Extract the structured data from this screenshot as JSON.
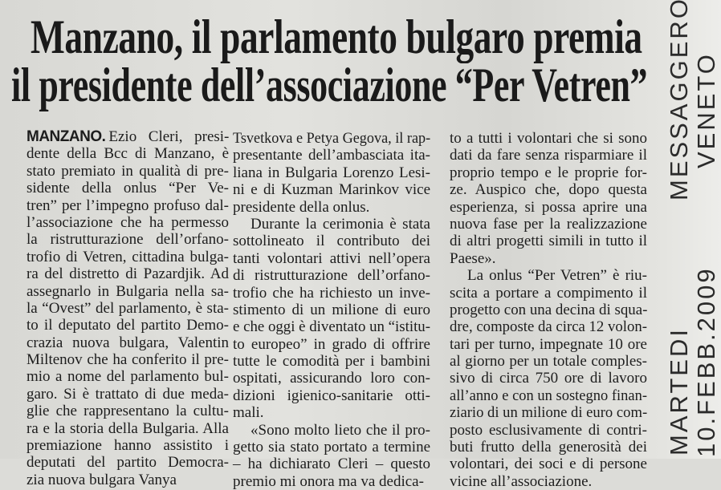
{
  "headline": {
    "line1": "Manzano, il parlamento bulgaro premia",
    "line2": "il presidente dell’associazione “Per Vetren”"
  },
  "article": {
    "lead": "MANZANO.",
    "columns": [
      {
        "paragraphs": [
          [
            "Ezio Cleri, presi-",
            "dente della Bcc di Manzano, è",
            "stato premiato in qualità di pre-",
            "sidente della onlus “Per Ve-",
            "tren” per l’impegno profuso dal-",
            "l’associazione che ha permesso",
            "la ristrutturazione dell’orfano-",
            "trofio di Vetren, cittadina bulga-",
            "ra del distretto di Pazardjik. Ad",
            "assegnarlo in Bulgaria nella sa-",
            "la “Ovest” del parlamento, è sta-",
            "to il deputato del partito Demo-",
            "crazia nuova bulgara, Valentin",
            "Miltenov che ha conferito il pre-",
            "mio a nome del parlamento bul-",
            "garo. Si è trattato di due meda-",
            "glie che rappresentano la cultu-",
            "ra e la storia della Bulgaria. Alla",
            "premiazione hanno assistito i",
            "deputati del partito Democra-",
            "zia nuova bulgara Vanya"
          ]
        ]
      },
      {
        "paragraphs": [
          [
            "Tsvetkova e Petya Gegova, il rap-",
            "presentante dell’ambasciata ita-",
            "liana in Bulgaria Lorenzo Lesi-",
            "ni e di Kuzman Marinkov vice",
            "presidente della onlus."
          ],
          [
            "Durante la cerimonia è stata",
            "sottolineato il contributo dei",
            "tanti volontari attivi nell’opera",
            "di ristrutturazione dell’orfano-",
            "trofio che ha richiesto un inve-",
            "stimento di un milione di euro",
            "e che oggi è diventato un “istitu-",
            "to europeo” in grado di offrire",
            "tutte le comodità per i bambini",
            "ospitati, assicurando loro con-",
            "dizioni igienico-sanitarie otti-",
            "mali."
          ],
          [
            "«Sono molto lieto che il pro-",
            "getto sia stato portato a termine",
            "– ha dichiarato Cleri – questo",
            "premio mi onora ma va dedica-"
          ]
        ]
      },
      {
        "paragraphs": [
          [
            "to a tutti i volontari che si sono",
            "dati da fare senza risparmiare il",
            "proprio tempo e le proprie for-",
            "ze. Auspico che, dopo questa",
            "esperienza, si possa aprire una",
            "nuova fase per la realizzazione",
            "di altri progetti simili in tutto il",
            "Paese»."
          ],
          [
            "La onlus “Per Vetren” è riu-",
            "scita a portare a compimento il",
            "progetto con una decina di squa-",
            "dre, composte da circa 12 volon-",
            "tari per turno, impegnate 10 ore",
            "al giorno per un totale comples-",
            "sivo di circa 750 ore di lavoro",
            "all’anno e con un sostegno finan-",
            "ziario di un milione di euro com-",
            "posto esclusivamente di contri-",
            "buti frutto della generosità dei",
            "volontari, dei soci e di persone",
            "vicine all’associazione."
          ]
        ]
      }
    ]
  },
  "handwritten_note": {
    "inner": [
      "MARTEDI",
      "MESSAGGERO"
    ],
    "outer": [
      "10.FEBB.2009",
      "VENETO"
    ]
  }
}
